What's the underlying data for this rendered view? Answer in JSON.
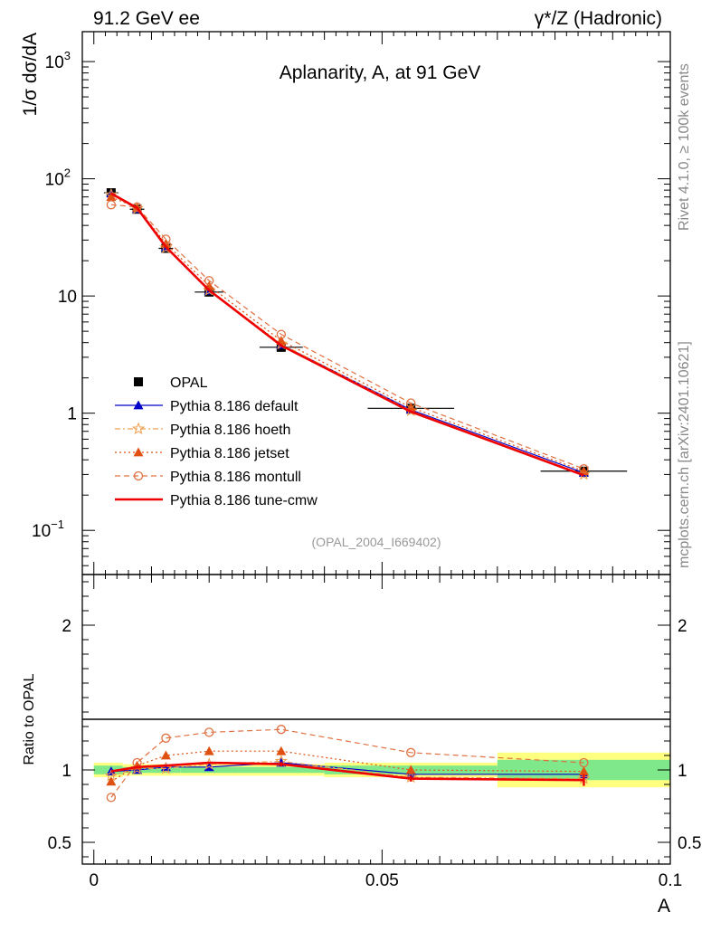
{
  "header": {
    "left": "91.2 GeV ee",
    "right": "γ*/Z (Hadronic)"
  },
  "side_labels": {
    "rivet": "Rivet 4.1.0, ≥ 100k events",
    "mcplots": "mcplots.cern.ch [arXiv:2401.10621]"
  },
  "chart_data": [
    {
      "type": "line",
      "title": "Aplanarity, A, at 91 GeV",
      "watermark": "(OPAL_2004_I669402)",
      "ylabel": "1/σ  dσ/dA",
      "yscale": "log",
      "ylim": [
        0.042,
        1800
      ],
      "xlim": [
        -0.002,
        0.1
      ],
      "y_ticks": [
        {
          "value": 0.1,
          "base": "10",
          "exp": "−1"
        },
        {
          "value": 1,
          "base": "1",
          "exp": ""
        },
        {
          "value": 10,
          "base": "10",
          "exp": ""
        },
        {
          "value": 100,
          "base": "10",
          "exp": "2"
        },
        {
          "value": 1000,
          "base": "10",
          "exp": "3"
        }
      ],
      "x": [
        0.003,
        0.0075,
        0.0125,
        0.02,
        0.0325,
        0.055,
        0.085
      ],
      "series": [
        {
          "name": "OPAL",
          "style": "data",
          "color": "#000000",
          "marker": "square",
          "dash": "",
          "values": [
            76,
            55,
            25.5,
            10.8,
            3.65,
            1.1,
            0.32
          ],
          "xerr": [
            0.0025,
            0.0025,
            0.0025,
            0.005,
            0.0075,
            0.015,
            0.015
          ]
        },
        {
          "name": "Pythia 8.186 default",
          "color": "#0000cc",
          "marker": "triangle",
          "dash": "",
          "width": 1.2,
          "values": [
            75,
            55.3,
            26,
            11.1,
            3.83,
            1.07,
            0.31
          ]
        },
        {
          "name": "Pythia 8.186 hoeth",
          "color": "#f0a050",
          "marker": "star",
          "dash": "6 3 2 3",
          "width": 1.2,
          "values": [
            73,
            55.8,
            25.8,
            11.2,
            3.9,
            1.05,
            0.3
          ]
        },
        {
          "name": "Pythia 8.186 jetset",
          "color": "#e05010",
          "marker": "triangle",
          "dash": "2 3",
          "width": 1.2,
          "values": [
            70,
            56.5,
            28,
            12.2,
            4.15,
            1.12,
            0.32
          ]
        },
        {
          "name": "Pythia 8.186 montull",
          "color": "#e07040",
          "marker": "circle",
          "dash": "6 4",
          "width": 1.2,
          "values": [
            60,
            57.5,
            30.5,
            13.5,
            4.7,
            1.22,
            0.335
          ]
        },
        {
          "name": "Pythia 8.186 tune-cmw",
          "color": "#ee0000",
          "marker": "none",
          "dash": "",
          "width": 2.6,
          "values": [
            75,
            56.5,
            26.2,
            11.2,
            3.78,
            1.03,
            0.295
          ]
        }
      ]
    },
    {
      "type": "line",
      "ylabel": "Ratio to OPAL",
      "xlabel": "A",
      "ylim": [
        0.35,
        2.35
      ],
      "xlim": [
        -0.002,
        0.1
      ],
      "y_ticks": [
        {
          "value": 0.5,
          "label": "0.5"
        },
        {
          "value": 1,
          "label": "1"
        },
        {
          "value": 2,
          "label": "2"
        }
      ],
      "x_ticks": [
        {
          "value": 0,
          "label": "0"
        },
        {
          "value": 0.05,
          "label": "0.05"
        },
        {
          "value": 0.1,
          "label": "0.1"
        }
      ],
      "x": [
        0.003,
        0.0075,
        0.0125,
        0.02,
        0.0325,
        0.055,
        0.085
      ],
      "bands": {
        "x_edges": [
          0,
          0.005,
          0.01,
          0.015,
          0.025,
          0.04,
          0.07,
          0.1
        ],
        "inner": [
          0.03,
          0.02,
          0.02,
          0.02,
          0.02,
          0.03,
          0.07
        ],
        "outer": [
          0.05,
          0.04,
          0.04,
          0.04,
          0.04,
          0.05,
          0.12
        ]
      },
      "series": [
        {
          "name": "Pythia 8.186 default",
          "color": "#0000cc",
          "marker": "triangle",
          "dash": "",
          "width": 1.2,
          "values": [
            0.99,
            1.0,
            1.02,
            1.02,
            1.05,
            0.97,
            0.97
          ]
        },
        {
          "name": "Pythia 8.186 hoeth",
          "color": "#f0a050",
          "marker": "star",
          "dash": "6 3 2 3",
          "width": 1.2,
          "values": [
            0.96,
            1.01,
            1.01,
            1.04,
            1.06,
            0.95,
            0.94
          ]
        },
        {
          "name": "Pythia 8.186 jetset",
          "color": "#e05010",
          "marker": "triangle",
          "dash": "2 3",
          "width": 1.2,
          "values": [
            0.92,
            1.03,
            1.1,
            1.13,
            1.13,
            1.0,
            0.99
          ]
        },
        {
          "name": "Pythia 8.186 montull",
          "color": "#e07040",
          "marker": "circle",
          "dash": "6 4",
          "width": 1.2,
          "values": [
            0.81,
            1.05,
            1.22,
            1.26,
            1.28,
            1.12,
            1.05
          ]
        },
        {
          "name": "Pythia 8.186 tune-cmw",
          "color": "#ee0000",
          "marker": "none",
          "dash": "",
          "width": 2.6,
          "values": [
            0.99,
            1.02,
            1.03,
            1.05,
            1.04,
            0.94,
            0.93
          ],
          "err": [
            0.0,
            0.0,
            0.0,
            0.0,
            0.015,
            0.02,
            0.04
          ]
        }
      ]
    }
  ]
}
